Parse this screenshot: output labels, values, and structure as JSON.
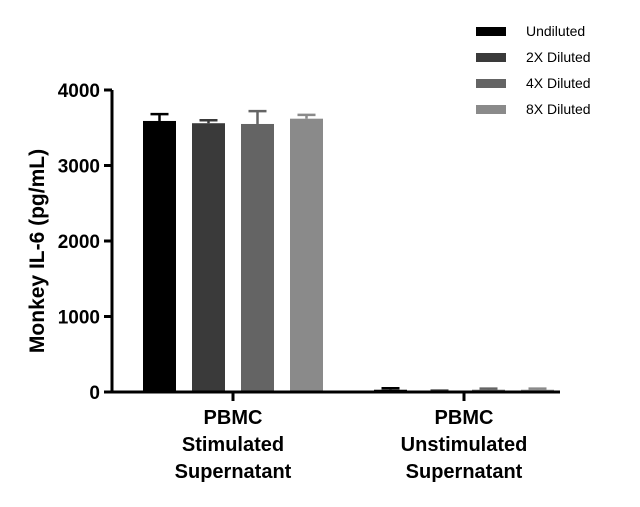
{
  "chart_data": {
    "type": "bar",
    "ylabel": "Monkey IL-6 (pg/mL)",
    "ylim": [
      0,
      4000
    ],
    "yticks": [
      "0",
      "1000",
      "2000",
      "3000",
      "4000"
    ],
    "categories": [
      [
        "PBMC",
        "Stimulated",
        "Supernatant"
      ],
      [
        "PBMC",
        "Unstimulated",
        "Supernatant"
      ]
    ],
    "series": [
      {
        "name": "Undiluted",
        "color": "#000000",
        "values": [
          3590,
          30
        ],
        "errors": [
          90,
          20
        ]
      },
      {
        "name": "2X Diluted",
        "color": "#3a3a3a",
        "values": [
          3560,
          10
        ],
        "errors": [
          40,
          8
        ]
      },
      {
        "name": "4X Diluted",
        "color": "#646464",
        "values": [
          3550,
          30
        ],
        "errors": [
          170,
          15
        ]
      },
      {
        "name": "8X Diluted",
        "color": "#8a8a8a",
        "values": [
          3620,
          30
        ],
        "errors": [
          50,
          15
        ]
      }
    ],
    "legend_position": "top-right",
    "grid": false
  }
}
